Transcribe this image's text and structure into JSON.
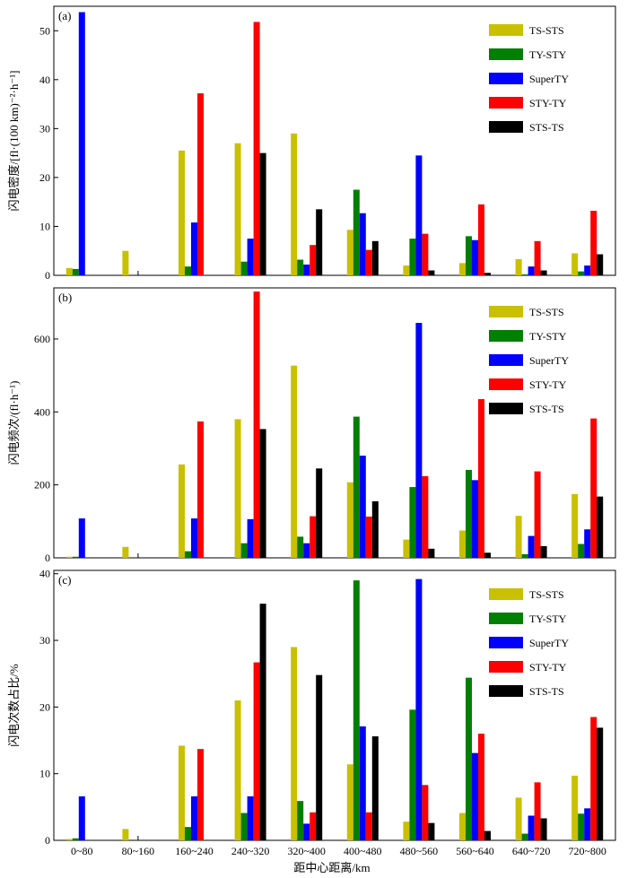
{
  "figure": {
    "xlabel": "距中心距离/km"
  },
  "legend_colors": {
    "TS-STS": "#c8c000",
    "TY-STY": "#008000",
    "SuperTY": "#0000ff",
    "STY-TY": "#ff0000",
    "STS-TS": "#000000"
  },
  "chart_data": [
    {
      "type": "bar",
      "panel_label": "(a)",
      "ylabel": "闪电密度/[fl·(100 km)⁻²·h⁻¹]",
      "ylim": [
        0,
        55
      ],
      "yticks": [
        0,
        10,
        20,
        30,
        40,
        50
      ],
      "legend_placement": "top-right",
      "categories": [
        "0~80",
        "80~160",
        "160~240",
        "240~320",
        "320~400",
        "400~480",
        "480~560",
        "560~640",
        "640~720",
        "720~800"
      ],
      "series": [
        {
          "name": "TS-STS",
          "values": [
            1.5,
            5.0,
            25.5,
            27.0,
            29.0,
            9.3,
            2.0,
            2.5,
            3.3,
            4.5
          ]
        },
        {
          "name": "TY-STY",
          "values": [
            1.3,
            0,
            1.8,
            2.8,
            3.2,
            17.5,
            7.5,
            8.0,
            0.2,
            0.8
          ]
        },
        {
          "name": "SuperTY",
          "values": [
            53.8,
            0,
            10.8,
            7.5,
            2.2,
            12.7,
            24.5,
            7.2,
            1.8,
            2.0
          ]
        },
        {
          "name": "STY-TY",
          "values": [
            0,
            0,
            37.2,
            51.8,
            6.2,
            5.2,
            8.5,
            14.5,
            7.0,
            13.2
          ]
        },
        {
          "name": "STS-TS",
          "values": [
            0,
            0,
            0,
            25.0,
            13.5,
            7.0,
            1.0,
            0.5,
            1.0,
            4.3
          ]
        }
      ]
    },
    {
      "type": "bar",
      "panel_label": "(b)",
      "ylabel": "闪电频次/(fl·h⁻¹)",
      "ylim": [
        0,
        740
      ],
      "yticks": [
        0,
        200,
        400,
        600
      ],
      "legend_placement": "top-right",
      "categories": [
        "0~80",
        "80~160",
        "160~240",
        "240~320",
        "320~400",
        "400~480",
        "480~560",
        "560~640",
        "640~720",
        "720~800"
      ],
      "series": [
        {
          "name": "TS-STS",
          "values": [
            3,
            30,
            256,
            380,
            527,
            207,
            50,
            75,
            115,
            175
          ]
        },
        {
          "name": "TY-STY",
          "values": [
            3,
            0,
            18,
            40,
            58,
            387,
            194,
            241,
            10,
            38
          ]
        },
        {
          "name": "SuperTY",
          "values": [
            108,
            0,
            108,
            106,
            40,
            280,
            644,
            213,
            60,
            78
          ]
        },
        {
          "name": "STY-TY",
          "values": [
            0,
            0,
            374,
            730,
            114,
            113,
            224,
            435,
            237,
            382
          ]
        },
        {
          "name": "STS-TS",
          "values": [
            0,
            0,
            0,
            353,
            245,
            155,
            25,
            14,
            32,
            168
          ]
        }
      ]
    },
    {
      "type": "bar",
      "panel_label": "(c)",
      "ylabel": "闪电次数占比/%",
      "ylim": [
        0,
        40.5
      ],
      "yticks": [
        0,
        10,
        20,
        30,
        40
      ],
      "legend_placement": "top-right",
      "categories": [
        "0~80",
        "80~160",
        "160~240",
        "240~320",
        "320~400",
        "400~480",
        "480~560",
        "560~640",
        "640~720",
        "720~800"
      ],
      "series": [
        {
          "name": "TS-STS",
          "values": [
            0.2,
            1.7,
            14.2,
            21.0,
            29.0,
            11.4,
            2.8,
            4.1,
            6.4,
            9.7
          ]
        },
        {
          "name": "TY-STY",
          "values": [
            0.3,
            0,
            2.0,
            4.1,
            5.9,
            39.0,
            19.6,
            24.4,
            1.0,
            4.0
          ]
        },
        {
          "name": "SuperTY",
          "values": [
            6.6,
            0,
            6.6,
            6.6,
            2.5,
            17.1,
            39.2,
            13.1,
            3.7,
            4.8
          ]
        },
        {
          "name": "STY-TY",
          "values": [
            0,
            0,
            13.7,
            26.7,
            4.2,
            4.2,
            8.3,
            16.0,
            8.7,
            18.5
          ]
        },
        {
          "name": "STS-TS",
          "values": [
            0,
            0,
            0,
            35.5,
            24.8,
            15.6,
            2.6,
            1.4,
            3.3,
            16.9
          ]
        }
      ]
    }
  ]
}
